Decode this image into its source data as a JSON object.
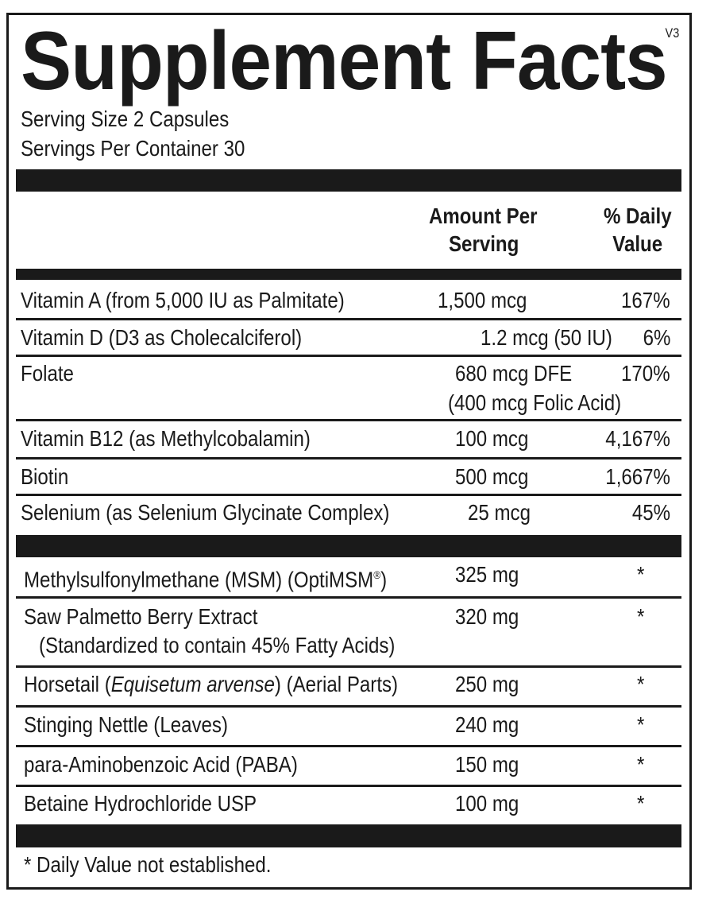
{
  "title": "Supplement Facts",
  "version": "V3",
  "serving_size": "Serving Size 2 Capsules",
  "servings_per_container": "Servings Per Container 30",
  "header": {
    "amount_line1": "Amount Per",
    "amount_line2": "Serving",
    "dv_line1": "% Daily",
    "dv_line2": "Value"
  },
  "vitamins": [
    {
      "name": "Vitamin A (from 5,000 IU as Palmitate)",
      "amount": "1,500 mcg",
      "dv": "167%"
    },
    {
      "name": "Vitamin D (D3 as Cholecalciferol)",
      "amount": "1.2 mcg (50 IU)",
      "dv": "6%"
    },
    {
      "name": "Folate",
      "amount": "680 mcg DFE",
      "amount_sub": "(400 mcg Folic Acid)",
      "dv": "170%"
    },
    {
      "name": "Vitamin B12 (as Methylcobalamin)",
      "amount": "100 mcg",
      "dv": "4,167%"
    },
    {
      "name": "Biotin",
      "amount": "500 mcg",
      "dv": "1,667%"
    },
    {
      "name": "Selenium (as Selenium Glycinate Complex)",
      "amount": "25 mcg",
      "dv": "45%"
    }
  ],
  "others": [
    {
      "name": "Methylsulfonylmethane (MSM) (OptiMSM",
      "reg": "®",
      "name_end": ")",
      "amount": "325 mg",
      "dv": "*"
    },
    {
      "name": "Saw Palmetto Berry Extract",
      "name_sub": "(Standardized to contain 45% Fatty Acids)",
      "amount": "320 mg",
      "dv": "*"
    },
    {
      "name": "Horsetail (",
      "name_italic": "Equisetum arvense",
      "name_end": ") (Aerial Parts)",
      "amount": "250 mg",
      "dv": "*"
    },
    {
      "name": "Stinging Nettle (Leaves)",
      "amount": "240 mg",
      "dv": "*"
    },
    {
      "name": "para-Aminobenzoic Acid (PABA)",
      "amount": "150 mg",
      "dv": "*"
    },
    {
      "name": "Betaine Hydrochloride USP",
      "amount": "100 mg",
      "dv": "*"
    }
  ],
  "footnote": "* Daily Value not established."
}
